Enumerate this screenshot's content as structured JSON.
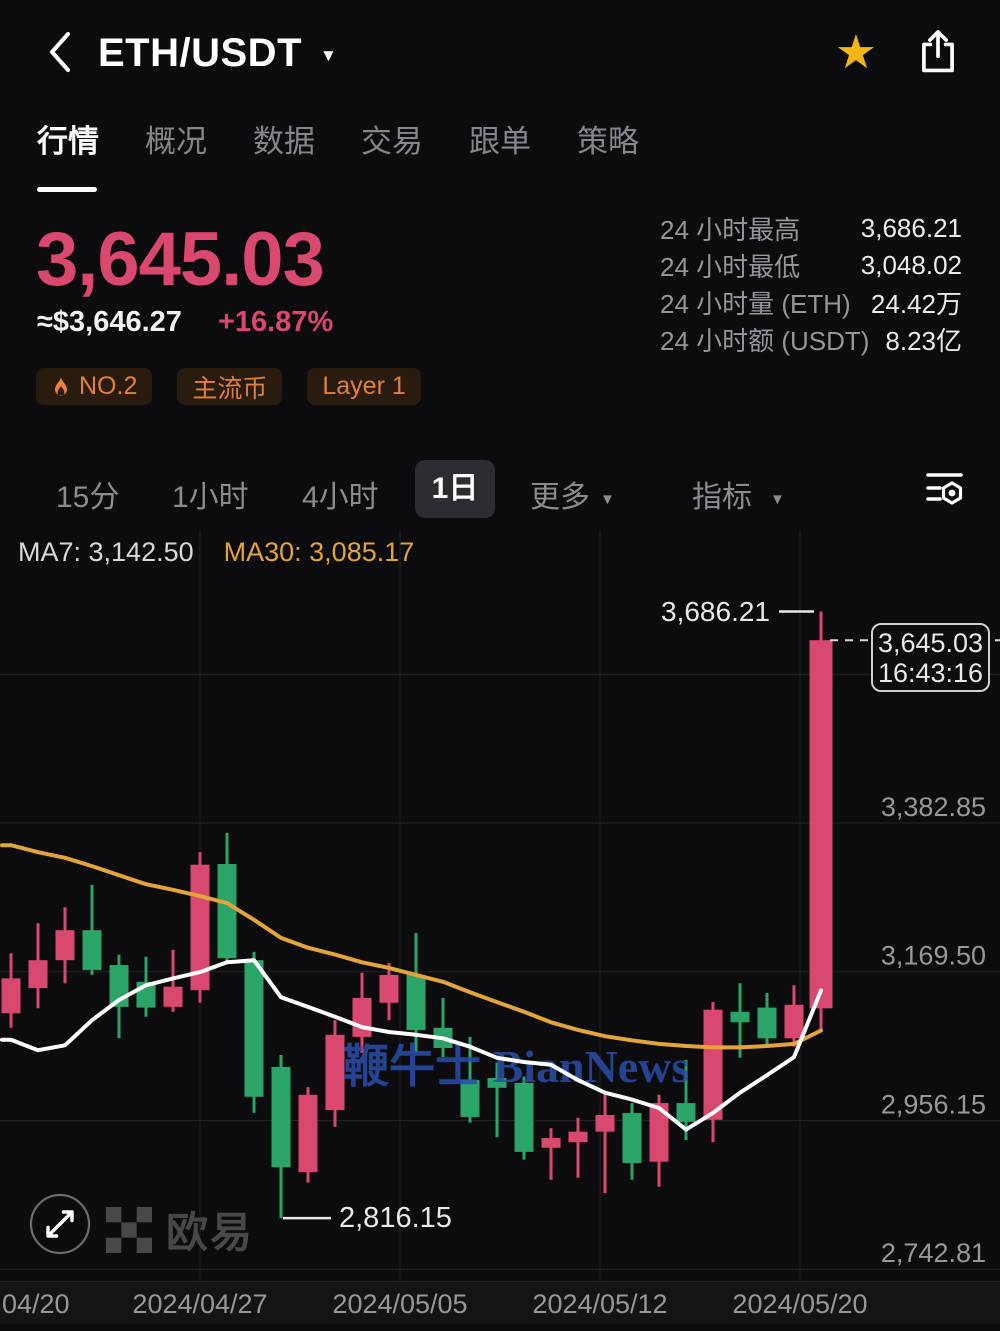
{
  "header": {
    "pair": "ETH/USDT",
    "favorited": true,
    "star_color": "#f3b50f"
  },
  "tabs": {
    "items": [
      "行情",
      "概况",
      "数据",
      "交易",
      "跟单",
      "策略"
    ],
    "active": "行情"
  },
  "price": {
    "last": "3,645.03",
    "approx": "≈$3,646.27",
    "change": "+16.87%",
    "up_color": "#d9486f"
  },
  "badges": [
    {
      "icon": "flame-icon",
      "label": "NO.2"
    },
    {
      "label": "主流币"
    },
    {
      "label": "Layer 1"
    }
  ],
  "stats": [
    {
      "label": "24 小时最高",
      "value": "3,686.21"
    },
    {
      "label": "24 小时最低",
      "value": "3,048.02"
    },
    {
      "label": "24 小时量 (ETH)",
      "value": "24.42万"
    },
    {
      "label": "24 小时额 (USDT)",
      "value": "8.23亿"
    }
  ],
  "toolbar": {
    "timeframes": [
      "15分",
      "1小时",
      "4小时",
      "1日"
    ],
    "active_timeframe": "1日",
    "more_label": "更多",
    "indicator_label": "指标"
  },
  "chart": {
    "ma7_label": "MA7: 3,142.50",
    "ma30_label": "MA30: 3,085.17",
    "watermark": "鞭牛士 BianNews",
    "high_annotation": "3,686.21",
    "low_annotation": "2,816.15",
    "tag": {
      "price": "3,645.03",
      "time": "16:43:16"
    },
    "y_labels": [
      "3,382.85",
      "3,169.50",
      "2,956.15",
      "2,742.81"
    ],
    "x_labels": [
      "04/20",
      "2024/04/27",
      "2024/05/05",
      "2024/05/12",
      "2024/05/20"
    ]
  },
  "logo": {
    "text": "欧易"
  },
  "chart_data": {
    "type": "candlestick",
    "pair": "ETH/USDT",
    "interval": "1日",
    "year": "2024",
    "up_color": "#d9486f",
    "down_color": "#2ba567",
    "ma7_color": "#ffffff",
    "ma30_color": "#e2a43b",
    "y_ticks": [
      3596.2,
      3382.85,
      3169.5,
      2956.15,
      2742.81
    ],
    "high": 3686.21,
    "low": 2816.15,
    "last": 3645.03,
    "last_time": "16:43:16",
    "ma7_last": 3142.5,
    "ma30_last": 3085.17,
    "dates": [
      "04/20",
      "04/21",
      "04/22",
      "04/23",
      "04/24",
      "04/25",
      "04/26",
      "04/27",
      "04/28",
      "04/29",
      "04/30",
      "05/01",
      "05/02",
      "05/03",
      "05/04",
      "05/05",
      "05/06",
      "05/07",
      "05/08",
      "05/09",
      "05/10",
      "05/11",
      "05/12",
      "05/13",
      "05/14",
      "05/15",
      "05/16",
      "05/17",
      "05/18",
      "05/19",
      "05/20"
    ],
    "ohlc": [
      [
        3110,
        3196,
        3089,
        3160
      ],
      [
        3146,
        3239,
        3117,
        3186
      ],
      [
        3186,
        3262,
        3153,
        3229
      ],
      [
        3229,
        3294,
        3165,
        3172
      ],
      [
        3179,
        3194,
        3074,
        3119
      ],
      [
        3155,
        3191,
        3105,
        3118
      ],
      [
        3119,
        3201,
        3112,
        3148
      ],
      [
        3143,
        3341,
        3125,
        3323
      ],
      [
        3324,
        3369,
        3182,
        3189
      ],
      [
        3186,
        3198,
        2967,
        2990
      ],
      [
        3033,
        3050,
        2816.15,
        2889
      ],
      [
        2882,
        3004,
        2867,
        2993
      ],
      [
        2971,
        3100,
        2947,
        3079
      ],
      [
        3076,
        3168,
        3053,
        3132
      ],
      [
        3125,
        3182,
        3100,
        3165
      ],
      [
        3165,
        3225,
        3053,
        3086
      ],
      [
        3089,
        3132,
        3047,
        3060
      ],
      [
        3014,
        3076,
        2953,
        2961
      ],
      [
        3017,
        3039,
        2932,
        3003
      ],
      [
        3010,
        3019,
        2900,
        2911
      ],
      [
        2917,
        2945,
        2871,
        2931
      ],
      [
        2925,
        2960,
        2874,
        2940
      ],
      [
        2940,
        2997,
        2852,
        2964
      ],
      [
        2967,
        2981,
        2871,
        2895
      ],
      [
        2897,
        2993,
        2861,
        2981
      ],
      [
        2981,
        3043,
        2928,
        2954
      ],
      [
        2957,
        3126,
        2925,
        3115
      ],
      [
        3112,
        3153,
        3046,
        3097
      ],
      [
        3118,
        3139,
        3064,
        3074
      ],
      [
        3074,
        3150,
        3062,
        3122
      ],
      [
        3117,
        3686.21,
        3086,
        3645.03
      ]
    ],
    "ma7": [
      3072,
      3057,
      3064,
      3100,
      3129,
      3150,
      3160,
      3169,
      3183,
      3186,
      3133,
      3119,
      3105,
      3090,
      3083,
      3079,
      3074,
      3062,
      3046,
      3040,
      3036,
      3014,
      2996,
      2986,
      2974,
      2943,
      2967,
      2996,
      3021,
      3047,
      3142.5
    ],
    "ma30": [
      3351,
      3341,
      3333,
      3321,
      3308,
      3295,
      3287,
      3278,
      3268,
      3244,
      3218,
      3204,
      3194,
      3183,
      3175,
      3165,
      3155,
      3140,
      3126,
      3112,
      3097,
      3086,
      3077,
      3071,
      3066,
      3063,
      3061,
      3061,
      3063,
      3066,
      3085.17
    ]
  }
}
